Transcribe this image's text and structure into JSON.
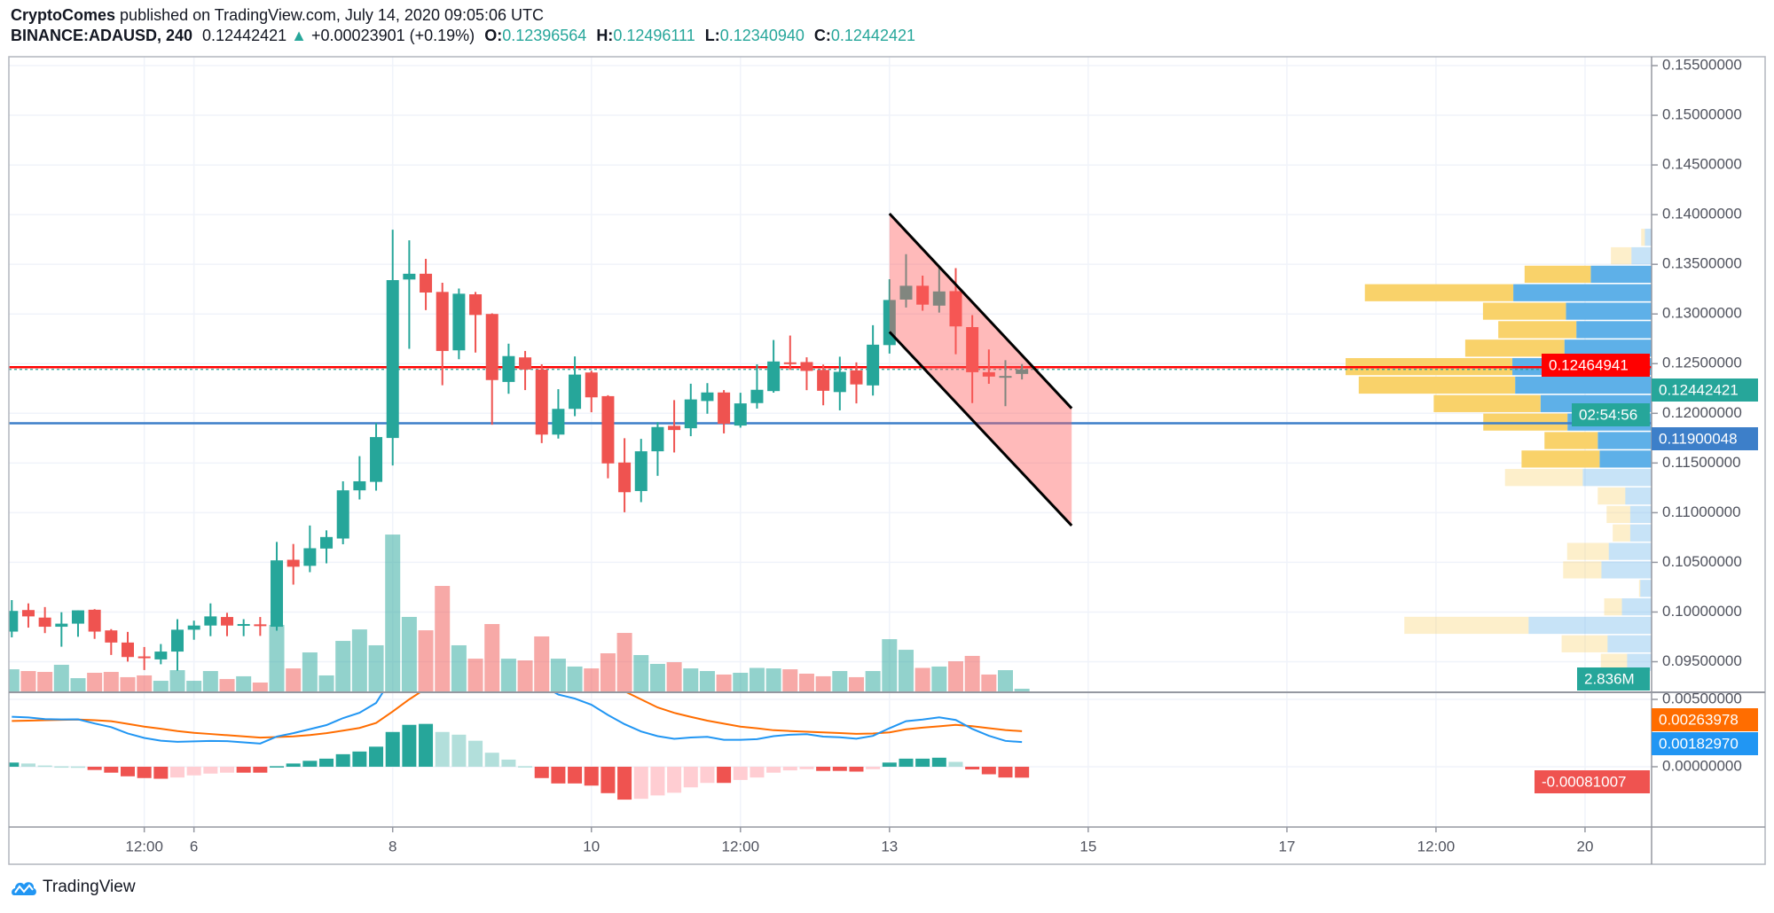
{
  "header": {
    "author": "CryptoComes",
    "published_text": "published on TradingView.com, July 14, 2020 09:05:06 UTC",
    "symbol": "BINANCE:ADAUSD, 240",
    "last_price": "0.12442421",
    "change": "+0.00023901 (+0.19%)",
    "o_label": "O:",
    "o_value": "0.12396564",
    "h_label": "H:",
    "h_value": "0.12496111",
    "l_label": "L:",
    "l_value": "0.12340940",
    "c_label": "C:",
    "c_value": "0.12442421"
  },
  "footer": {
    "brand": "TradingView"
  },
  "colors": {
    "up": "#26a69a",
    "down": "#ef5350",
    "macd": "#2196f3",
    "signal": "#ff6d00",
    "resistance_line": "#ff0000",
    "support_line": "#3d7fc9",
    "channel_fill": "rgba(255,90,90,0.42)",
    "profile_up": "#5eb0e8",
    "profile_down": "#f9d26a"
  },
  "chart_data": {
    "type": "candlestick",
    "interval_minutes": 240,
    "price_axis": {
      "ylim": [
        0.095,
        0.155
      ],
      "ticks": [
        "0.15500000",
        "0.15000000",
        "0.14500000",
        "0.14000000",
        "0.13500000",
        "0.13000000",
        "0.12500000",
        "0.12000000",
        "0.11500000",
        "0.11000000",
        "0.10500000",
        "0.10000000",
        "0.09500000"
      ]
    },
    "time_axis": [
      {
        "label": "12:00",
        "at": "Jul 5 12:00"
      },
      {
        "label": "6",
        "at": "Jul 6 00:00"
      },
      {
        "label": "8",
        "at": "Jul 8 00:00"
      },
      {
        "label": "10",
        "at": "Jul 10 00:00"
      },
      {
        "label": "12:00",
        "at": "Jul 11 12:00"
      },
      {
        "label": "13",
        "at": "Jul 13 00:00"
      },
      {
        "label": "15",
        "at": "Jul 15 00:00"
      },
      {
        "label": "17",
        "at": "Jul 17 00:00"
      },
      {
        "label": "12:00",
        "at": "Jul 18 12:00"
      },
      {
        "label": "20",
        "at": "Jul 20 00:00"
      }
    ],
    "candles": [
      {
        "t": "Jul 4 04:00",
        "o": 0.09803,
        "h": 0.1012,
        "l": 0.09745,
        "c": 0.10011,
        "v": 18.4
      },
      {
        "t": "Jul 4 08:00",
        "o": 0.1002,
        "h": 0.10087,
        "l": 0.09843,
        "c": 0.09956,
        "v": 17.0
      },
      {
        "t": "Jul 4 12:00",
        "o": 0.09944,
        "h": 0.1005,
        "l": 0.09788,
        "c": 0.09852,
        "v": 16.3
      },
      {
        "t": "Jul 4 16:00",
        "o": 0.09852,
        "h": 0.09998,
        "l": 0.09651,
        "c": 0.09883,
        "v": 22.0
      },
      {
        "t": "Jul 4 20:00",
        "o": 0.09883,
        "h": 0.10017,
        "l": 0.09751,
        "c": 0.10017,
        "v": 11.3
      },
      {
        "t": "Jul 5 00:00",
        "o": 0.10023,
        "h": 0.10029,
        "l": 0.0973,
        "c": 0.09803,
        "v": 15.6
      },
      {
        "t": "Jul 5 04:00",
        "o": 0.09815,
        "h": 0.09828,
        "l": 0.09568,
        "c": 0.09693,
        "v": 16.3
      },
      {
        "t": "Jul 5 08:00",
        "o": 0.09693,
        "h": 0.098,
        "l": 0.09501,
        "c": 0.09547,
        "v": 12.1
      },
      {
        "t": "Jul 5 12:00",
        "o": 0.09553,
        "h": 0.09648,
        "l": 0.09416,
        "c": 0.09541,
        "v": 13.5
      },
      {
        "t": "Jul 5 16:00",
        "o": 0.09523,
        "h": 0.09678,
        "l": 0.09474,
        "c": 0.09602,
        "v": 9.2
      },
      {
        "t": "Jul 5 20:00",
        "o": 0.09602,
        "h": 0.09928,
        "l": 0.0941,
        "c": 0.09822,
        "v": 17.7
      },
      {
        "t": "Jul 6 00:00",
        "o": 0.09822,
        "h": 0.09913,
        "l": 0.09721,
        "c": 0.09864,
        "v": 9.2
      },
      {
        "t": "Jul 6 04:00",
        "o": 0.09864,
        "h": 0.10087,
        "l": 0.09757,
        "c": 0.09956,
        "v": 17.0
      },
      {
        "t": "Jul 6 08:00",
        "o": 0.0995,
        "h": 0.09992,
        "l": 0.09757,
        "c": 0.09864,
        "v": 10.6
      },
      {
        "t": "Jul 6 12:00",
        "o": 0.09864,
        "h": 0.09928,
        "l": 0.09757,
        "c": 0.09879,
        "v": 12.8
      },
      {
        "t": "Jul 6 16:00",
        "o": 0.09876,
        "h": 0.0995,
        "l": 0.0976,
        "c": 0.09864,
        "v": 7.8
      },
      {
        "t": "Jul 6 20:00",
        "o": 0.09852,
        "h": 0.10706,
        "l": 0.09812,
        "c": 0.1052,
        "v": 53.9
      },
      {
        "t": "Jul 7 00:00",
        "o": 0.10526,
        "h": 0.10685,
        "l": 0.10276,
        "c": 0.10456,
        "v": 19.1
      },
      {
        "t": "Jul 7 04:00",
        "o": 0.10465,
        "h": 0.10871,
        "l": 0.10401,
        "c": 0.10642,
        "v": 31.9
      },
      {
        "t": "Jul 7 08:00",
        "o": 0.10639,
        "h": 0.10822,
        "l": 0.1049,
        "c": 0.10755,
        "v": 13.5
      },
      {
        "t": "Jul 7 12:00",
        "o": 0.1074,
        "h": 0.11316,
        "l": 0.10682,
        "c": 0.11225,
        "v": 41.1
      },
      {
        "t": "Jul 7 16:00",
        "o": 0.11225,
        "h": 0.11569,
        "l": 0.11133,
        "c": 0.11316,
        "v": 50.3
      },
      {
        "t": "Jul 7 20:00",
        "o": 0.1131,
        "h": 0.11902,
        "l": 0.11222,
        "c": 0.11761,
        "v": 37.6
      },
      {
        "t": "Jul 8 00:00",
        "o": 0.11752,
        "h": 0.13848,
        "l": 0.11475,
        "c": 0.13341,
        "v": 126.2
      },
      {
        "t": "Jul 8 04:00",
        "o": 0.13347,
        "h": 0.13741,
        "l": 0.12649,
        "c": 0.13405,
        "v": 60.3
      },
      {
        "t": "Jul 8 08:00",
        "o": 0.13405,
        "h": 0.13555,
        "l": 0.13039,
        "c": 0.13216,
        "v": 49.6
      },
      {
        "t": "Jul 8 12:00",
        "o": 0.13222,
        "h": 0.13314,
        "l": 0.12283,
        "c": 0.12628,
        "v": 85.1
      },
      {
        "t": "Jul 8 16:00",
        "o": 0.12634,
        "h": 0.13256,
        "l": 0.12545,
        "c": 0.13204,
        "v": 37.6
      },
      {
        "t": "Jul 8 20:00",
        "o": 0.13198,
        "h": 0.13222,
        "l": 0.12612,
        "c": 0.1299,
        "v": 26.9
      },
      {
        "t": "Jul 9 00:00",
        "o": 0.13,
        "h": 0.13006,
        "l": 0.11886,
        "c": 0.12335,
        "v": 54.6
      },
      {
        "t": "Jul 9 04:00",
        "o": 0.12316,
        "h": 0.12701,
        "l": 0.12197,
        "c": 0.12576,
        "v": 26.9
      },
      {
        "t": "Jul 9 08:00",
        "o": 0.12563,
        "h": 0.12628,
        "l": 0.12234,
        "c": 0.12441,
        "v": 25.5
      },
      {
        "t": "Jul 9 12:00",
        "o": 0.12441,
        "h": 0.12493,
        "l": 0.117,
        "c": 0.11786,
        "v": 44.7
      },
      {
        "t": "Jul 9 16:00",
        "o": 0.11786,
        "h": 0.12243,
        "l": 0.11746,
        "c": 0.12045,
        "v": 26.9
      },
      {
        "t": "Jul 9 20:00",
        "o": 0.12045,
        "h": 0.12573,
        "l": 0.11972,
        "c": 0.1239,
        "v": 20.6
      },
      {
        "t": "Jul 10 00:00",
        "o": 0.12411,
        "h": 0.12429,
        "l": 0.12011,
        "c": 0.12161,
        "v": 19.1
      },
      {
        "t": "Jul 10 04:00",
        "o": 0.12173,
        "h": 0.12182,
        "l": 0.11346,
        "c": 0.11496,
        "v": 31.2
      },
      {
        "t": "Jul 10 08:00",
        "o": 0.11505,
        "h": 0.11749,
        "l": 0.11005,
        "c": 0.11206,
        "v": 47.5
      },
      {
        "t": "Jul 10 12:00",
        "o": 0.11218,
        "h": 0.11743,
        "l": 0.11106,
        "c": 0.11618,
        "v": 29.8
      },
      {
        "t": "Jul 10 16:00",
        "o": 0.11618,
        "h": 0.11911,
        "l": 0.11371,
        "c": 0.11862,
        "v": 22.7
      },
      {
        "t": "Jul 10 20:00",
        "o": 0.11874,
        "h": 0.12133,
        "l": 0.11606,
        "c": 0.11832,
        "v": 24.1
      },
      {
        "t": "Jul 11 00:00",
        "o": 0.1185,
        "h": 0.12298,
        "l": 0.1177,
        "c": 0.1214,
        "v": 19.1
      },
      {
        "t": "Jul 11 04:00",
        "o": 0.12124,
        "h": 0.12304,
        "l": 0.11996,
        "c": 0.1221,
        "v": 17.0
      },
      {
        "t": "Jul 11 08:00",
        "o": 0.1221,
        "h": 0.12234,
        "l": 0.11798,
        "c": 0.11895,
        "v": 14.2
      },
      {
        "t": "Jul 11 12:00",
        "o": 0.11877,
        "h": 0.12207,
        "l": 0.11856,
        "c": 0.121,
        "v": 15.6
      },
      {
        "t": "Jul 11 16:00",
        "o": 0.12103,
        "h": 0.12493,
        "l": 0.12048,
        "c": 0.12237,
        "v": 19.5
      },
      {
        "t": "Jul 11 20:00",
        "o": 0.12224,
        "h": 0.12738,
        "l": 0.12208,
        "c": 0.12522,
        "v": 19.1
      },
      {
        "t": "Jul 12 00:00",
        "o": 0.12513,
        "h": 0.12783,
        "l": 0.12437,
        "c": 0.125,
        "v": 18.4
      },
      {
        "t": "Jul 12 04:00",
        "o": 0.12516,
        "h": 0.12564,
        "l": 0.12233,
        "c": 0.12427,
        "v": 14.9
      },
      {
        "t": "Jul 12 08:00",
        "o": 0.12437,
        "h": 0.12491,
        "l": 0.12081,
        "c": 0.12227,
        "v": 12.8
      },
      {
        "t": "Jul 12 12:00",
        "o": 0.12214,
        "h": 0.1257,
        "l": 0.1203,
        "c": 0.12418,
        "v": 17.0
      },
      {
        "t": "Jul 12 16:00",
        "o": 0.12433,
        "h": 0.12513,
        "l": 0.121,
        "c": 0.12291,
        "v": 12.1
      },
      {
        "t": "Jul 12 20:00",
        "o": 0.12281,
        "h": 0.12887,
        "l": 0.12179,
        "c": 0.12691,
        "v": 17.0
      },
      {
        "t": "Jul 13 00:00",
        "o": 0.12687,
        "h": 0.1335,
        "l": 0.12602,
        "c": 0.13141,
        "v": 42.5
      },
      {
        "t": "Jul 13 04:00",
        "o": 0.13145,
        "h": 0.13602,
        "l": 0.13065,
        "c": 0.13284,
        "v": 34.0
      },
      {
        "t": "Jul 13 08:00",
        "o": 0.13284,
        "h": 0.13386,
        "l": 0.13033,
        "c": 0.13094,
        "v": 19.5
      },
      {
        "t": "Jul 13 12:00",
        "o": 0.13084,
        "h": 0.13475,
        "l": 0.13014,
        "c": 0.13227,
        "v": 20.6
      },
      {
        "t": "Jul 13 16:00",
        "o": 0.1323,
        "h": 0.13462,
        "l": 0.12595,
        "c": 0.12875,
        "v": 24.8
      },
      {
        "t": "Jul 13 20:00",
        "o": 0.12868,
        "h": 0.12989,
        "l": 0.12103,
        "c": 0.12414,
        "v": 29.1
      },
      {
        "t": "Jul 14 00:00",
        "o": 0.12414,
        "h": 0.12643,
        "l": 0.12297,
        "c": 0.1237,
        "v": 14.2
      },
      {
        "t": "Jul 14 04:00",
        "o": 0.12361,
        "h": 0.12535,
        "l": 0.12072,
        "c": 0.12376,
        "v": 17.7
      },
      {
        "t": "Jul 14 08:00",
        "o": 0.12396564,
        "h": 0.12496111,
        "l": 0.1234094,
        "c": 0.12442421,
        "v": 2.836
      }
    ],
    "volume_unit": "M",
    "horizontal_lines": [
      {
        "price": 0.12464941,
        "label": "0.12464941",
        "color": "#ff0000",
        "style": "solid"
      },
      {
        "price": 0.11900048,
        "label": "0.11900048",
        "color": "#3d7fc9",
        "style": "solid"
      },
      {
        "price": 0.12442421,
        "label": "0.12442421",
        "color": "#26a69a",
        "style": "dotted"
      }
    ],
    "countdown": "02:54:56",
    "volume_label": "2.836M",
    "descending_channel": {
      "upper": [
        {
          "t": "Jul 13 00:00",
          "price": 0.1401
        },
        {
          "t": "Jul 14 20:00",
          "price": 0.1205
        }
      ],
      "lower": [
        {
          "t": "Jul 13 00:00",
          "price": 0.1282
        },
        {
          "t": "Jul 14 20:00",
          "price": 0.1087
        }
      ]
    },
    "volume_profile": {
      "top_price": 0.13865,
      "row_size": 0.00186,
      "rows": [
        {
          "up": 0.022,
          "down": 0.012,
          "value_area": false
        },
        {
          "up": 0.066,
          "down": 0.067,
          "value_area": false
        },
        {
          "up": 0.199,
          "down": 0.216,
          "value_area": true
        },
        {
          "up": 0.452,
          "down": 0.485,
          "value_area": true
        },
        {
          "up": 0.28,
          "down": 0.271,
          "value_area": true
        },
        {
          "up": 0.246,
          "down": 0.255,
          "value_area": true
        },
        {
          "up": 0.285,
          "down": 0.324,
          "value_area": true
        },
        {
          "up": 0.455,
          "down": 0.545,
          "value_area": true
        },
        {
          "up": 0.446,
          "down": 0.511,
          "value_area": true
        },
        {
          "up": 0.363,
          "down": 0.349,
          "value_area": true
        },
        {
          "up": 0.275,
          "down": 0.275,
          "value_area": true
        },
        {
          "up": 0.176,
          "down": 0.174,
          "value_area": true
        },
        {
          "up": 0.17,
          "down": 0.255,
          "value_area": true
        },
        {
          "up": 0.225,
          "down": 0.254,
          "value_area": false
        },
        {
          "up": 0.086,
          "down": 0.09,
          "value_area": false
        },
        {
          "up": 0.07,
          "down": 0.077,
          "value_area": false
        },
        {
          "up": 0.07,
          "down": 0.057,
          "value_area": false
        },
        {
          "up": 0.14,
          "down": 0.136,
          "value_area": false
        },
        {
          "up": 0.164,
          "down": 0.125,
          "value_area": false
        },
        {
          "up": 0.037,
          "down": 0.004,
          "value_area": false
        },
        {
          "up": 0.097,
          "down": 0.058,
          "value_area": false
        },
        {
          "up": 0.402,
          "down": 0.406,
          "value_area": false
        },
        {
          "up": 0.144,
          "down": 0.15,
          "value_area": false
        },
        {
          "up": 0.08,
          "down": 0.086,
          "value_area": false
        }
      ]
    },
    "macd": {
      "ticks": [
        "0.00500000",
        "0.00000000"
      ],
      "last_signal": "0.00263978",
      "last_macd": "0.00182970",
      "last_histogram": "-0.00081007",
      "macd_line": [
        0.00371,
        0.00366,
        0.00354,
        0.00351,
        0.00352,
        0.00321,
        0.00294,
        0.00247,
        0.00214,
        0.00193,
        0.00185,
        0.00188,
        0.00192,
        0.0019,
        0.00181,
        0.00172,
        0.00224,
        0.00249,
        0.00279,
        0.00309,
        0.00361,
        0.00401,
        0.00474,
        0.00668,
        0.00811,
        0.00898,
        0.00898,
        0.00918,
        0.00903,
        0.00824,
        0.00773,
        0.00714,
        0.00606,
        0.00536,
        0.00506,
        0.0046,
        0.00384,
        0.00316,
        0.00262,
        0.00227,
        0.00207,
        0.00217,
        0.00222,
        0.002,
        0.002,
        0.00205,
        0.00227,
        0.00238,
        0.00242,
        0.00224,
        0.00219,
        0.00208,
        0.00229,
        0.00286,
        0.00338,
        0.0035,
        0.00367,
        0.00347,
        0.00281,
        0.0023,
        0.00192,
        0.00183
      ],
      "signal_line": [
        0.0034,
        0.00342,
        0.00345,
        0.00348,
        0.0035,
        0.00345,
        0.00338,
        0.00318,
        0.00298,
        0.00282,
        0.00265,
        0.00252,
        0.00243,
        0.00234,
        0.00225,
        0.00216,
        0.0022,
        0.00225,
        0.00235,
        0.00249,
        0.00268,
        0.00288,
        0.00325,
        0.0041,
        0.005,
        0.0058,
        0.0064,
        0.0068,
        0.0071,
        0.0072,
        0.0072,
        0.0071,
        0.0069,
        0.0066,
        0.0063,
        0.006,
        0.0058,
        0.0056,
        0.005,
        0.0044,
        0.004,
        0.0037,
        0.00342,
        0.0032,
        0.00298,
        0.00285,
        0.00271,
        0.00265,
        0.0026,
        0.00255,
        0.0025,
        0.00244,
        0.00247,
        0.00255,
        0.00278,
        0.0029,
        0.003,
        0.00311,
        0.00301,
        0.00286,
        0.00272,
        0.00264
      ],
      "histogram": [
        0.00031,
        0.00024,
        9e-05,
        3e-05,
        2e-05,
        -0.00024,
        -0.00044,
        -0.00071,
        -0.00084,
        -0.00089,
        -0.0008,
        -0.00064,
        -0.00051,
        -0.00044,
        -0.00044,
        -0.00044,
        4e-05,
        0.00024,
        0.00044,
        0.0006,
        0.00093,
        0.00113,
        0.00149,
        0.00258,
        0.00311,
        0.00318,
        0.00258,
        0.00238,
        0.00193,
        0.00104,
        0.00053,
        4e-05,
        -0.00084,
        -0.00124,
        -0.00124,
        -0.0014,
        -0.00196,
        -0.00244,
        -0.00238,
        -0.00213,
        -0.00193,
        -0.00153,
        -0.0012,
        -0.0012,
        -0.00098,
        -0.0008,
        -0.00044,
        -0.00027,
        -0.00018,
        -0.00031,
        -0.00031,
        -0.00036,
        -0.00018,
        0.00031,
        0.0006,
        0.0006,
        0.00067,
        0.00036,
        -0.0002,
        -0.00056,
        -0.0008,
        -0.00081
      ]
    }
  }
}
